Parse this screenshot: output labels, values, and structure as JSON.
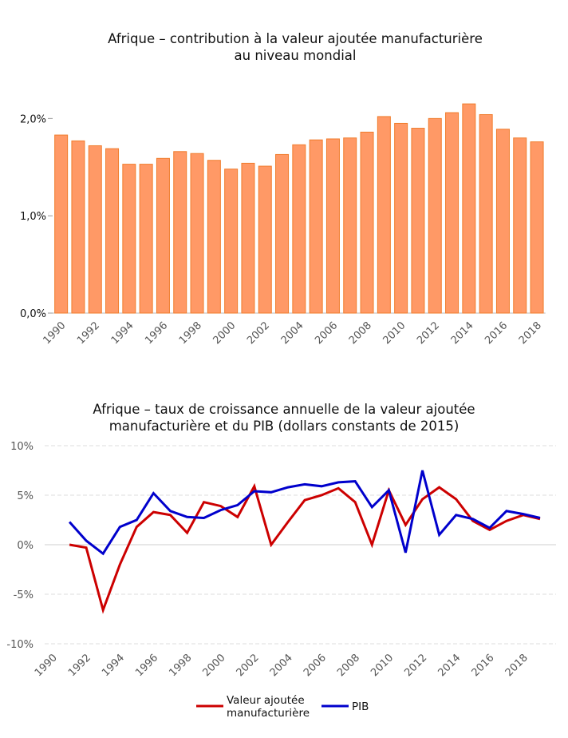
{
  "chart_data": [
    {
      "type": "bar",
      "title_lines": [
        "Afrique – contribution à la valeur ajoutée manufacturière",
        "au niveau mondial"
      ],
      "categories": [
        1990,
        1991,
        1992,
        1993,
        1994,
        1995,
        1996,
        1997,
        1998,
        1999,
        2000,
        2001,
        2002,
        2003,
        2004,
        2005,
        2006,
        2007,
        2008,
        2009,
        2010,
        2011,
        2012,
        2013,
        2014,
        2015,
        2016,
        2017,
        2018
      ],
      "x_tick_labels": [
        "1990",
        "1992",
        "1994",
        "1996",
        "1998",
        "2000",
        "2002",
        "2004",
        "2006",
        "2008",
        "2010",
        "2012",
        "2014",
        "2016",
        "2018"
      ],
      "values": [
        1.83,
        1.77,
        1.72,
        1.69,
        1.53,
        1.53,
        1.59,
        1.66,
        1.64,
        1.57,
        1.48,
        1.54,
        1.51,
        1.63,
        1.73,
        1.78,
        1.79,
        1.8,
        1.86,
        2.02,
        1.95,
        1.9,
        2.0,
        2.06,
        2.15,
        2.04,
        1.89,
        1.8,
        1.76
      ],
      "y_tick_labels": [
        "0,0%",
        "1,0%",
        "2,0%"
      ],
      "y_ticks": [
        0,
        1,
        2
      ],
      "ylim": [
        0,
        2.2
      ],
      "bar_color": "#ff9966",
      "bar_edge": "#f07c2c",
      "grid": false
    },
    {
      "type": "line",
      "title_lines": [
        "Afrique – taux de croissance annuelle de la valeur ajoutée",
        "manufacturière et du PIB (dollars constants de 2015)"
      ],
      "x": [
        1991,
        1992,
        1993,
        1994,
        1995,
        1996,
        1997,
        1998,
        1999,
        2000,
        2001,
        2002,
        2003,
        2004,
        2005,
        2006,
        2007,
        2008,
        2009,
        2010,
        2011,
        2012,
        2013,
        2014,
        2015,
        2016,
        2017,
        2018,
        2019
      ],
      "xlim": [
        1990,
        2019
      ],
      "x_tick_labels": [
        "1990",
        "1992",
        "1994",
        "1996",
        "1998",
        "2000",
        "2002",
        "2004",
        "2006",
        "2008",
        "2010",
        "2012",
        "2014",
        "2016",
        "2018"
      ],
      "y_ticks": [
        -10,
        -5,
        0,
        5,
        10
      ],
      "y_tick_labels": [
        "-10%",
        "-5%",
        "0%",
        "5%",
        "10%"
      ],
      "ylim": [
        -10,
        10
      ],
      "grid": true,
      "legend_position": "bottom",
      "series": [
        {
          "name": "Valeur ajoutée manufacturière",
          "legend_lines": [
            "Valeur ajoutée",
            "manufacturière"
          ],
          "color": "#cc0000",
          "values": [
            0.0,
            -0.3,
            -6.6,
            -2.0,
            1.8,
            3.3,
            3.0,
            1.2,
            4.3,
            3.9,
            2.8,
            5.9,
            0.0,
            2.3,
            4.5,
            5.0,
            5.7,
            4.3,
            0.0,
            5.5,
            2.0,
            4.6,
            5.8,
            4.6,
            2.4,
            1.5,
            2.4,
            3.0,
            2.6
          ]
        },
        {
          "name": "PIB",
          "legend_lines": [
            "PIB"
          ],
          "color": "#0000cc",
          "values": [
            2.3,
            0.4,
            -0.9,
            1.8,
            2.5,
            5.2,
            3.4,
            2.8,
            2.7,
            3.5,
            4.0,
            5.4,
            5.3,
            5.8,
            6.1,
            5.9,
            6.3,
            6.4,
            3.8,
            5.5,
            -0.8,
            7.5,
            1.0,
            3.0,
            2.6,
            1.7,
            3.4,
            3.1,
            2.7
          ]
        }
      ]
    }
  ]
}
